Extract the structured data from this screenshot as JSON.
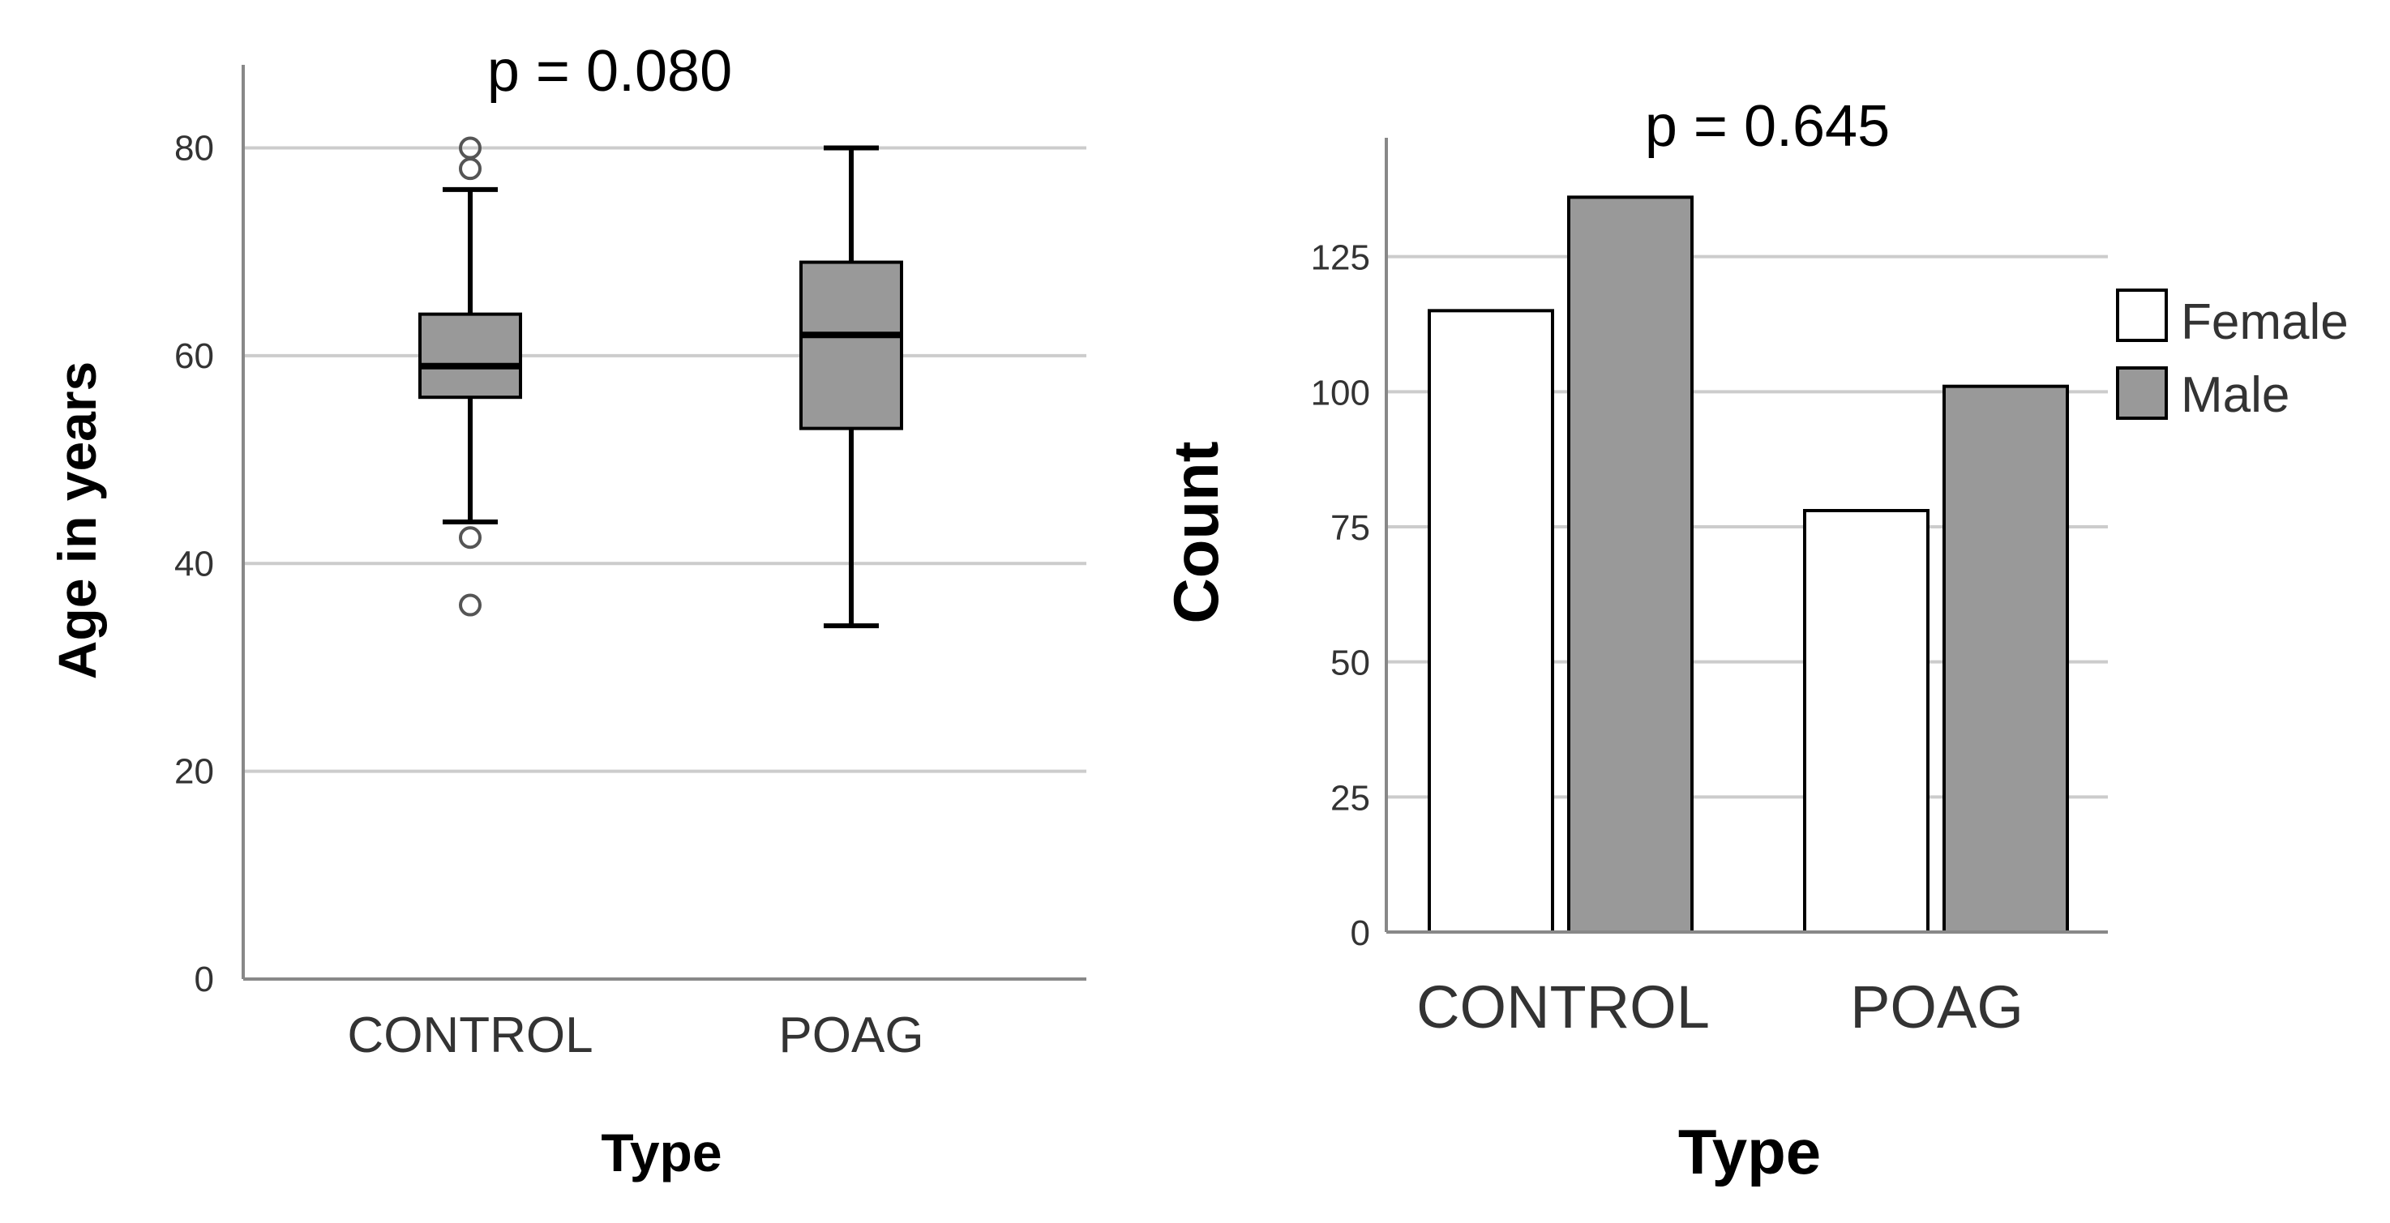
{
  "chart_data": [
    {
      "type": "box",
      "annotation": "p = 0.080",
      "xlabel": "Type",
      "ylabel": "Age in years",
      "categories": [
        "CONTROL",
        "POAG"
      ],
      "ylim": [
        0,
        88
      ],
      "yticks": [
        0,
        20,
        40,
        60,
        80
      ],
      "grid": true,
      "box_color": "#999999",
      "boxes": [
        {
          "category": "CONTROL",
          "whisker_low": 44,
          "q1": 56,
          "median": 59,
          "q3": 64,
          "whisker_high": 76,
          "outliers": [
            80,
            78,
            42.5,
            36
          ]
        },
        {
          "category": "POAG",
          "whisker_low": 34,
          "q1": 53,
          "median": 62,
          "q3": 69,
          "whisker_high": 80,
          "outliers": []
        }
      ]
    },
    {
      "type": "bar",
      "annotation": "p = 0.645",
      "xlabel": "Type",
      "ylabel": "Count",
      "categories": [
        "CONTROL",
        "POAG"
      ],
      "ylim": [
        0,
        147
      ],
      "yticks": [
        0,
        25,
        50,
        75,
        100,
        125
      ],
      "grid": true,
      "legend_position": "right",
      "series": [
        {
          "name": "Female",
          "color": "#ffffff",
          "values": [
            115,
            78
          ]
        },
        {
          "name": "Male",
          "color": "#999999",
          "values": [
            136,
            101
          ]
        }
      ]
    }
  ]
}
